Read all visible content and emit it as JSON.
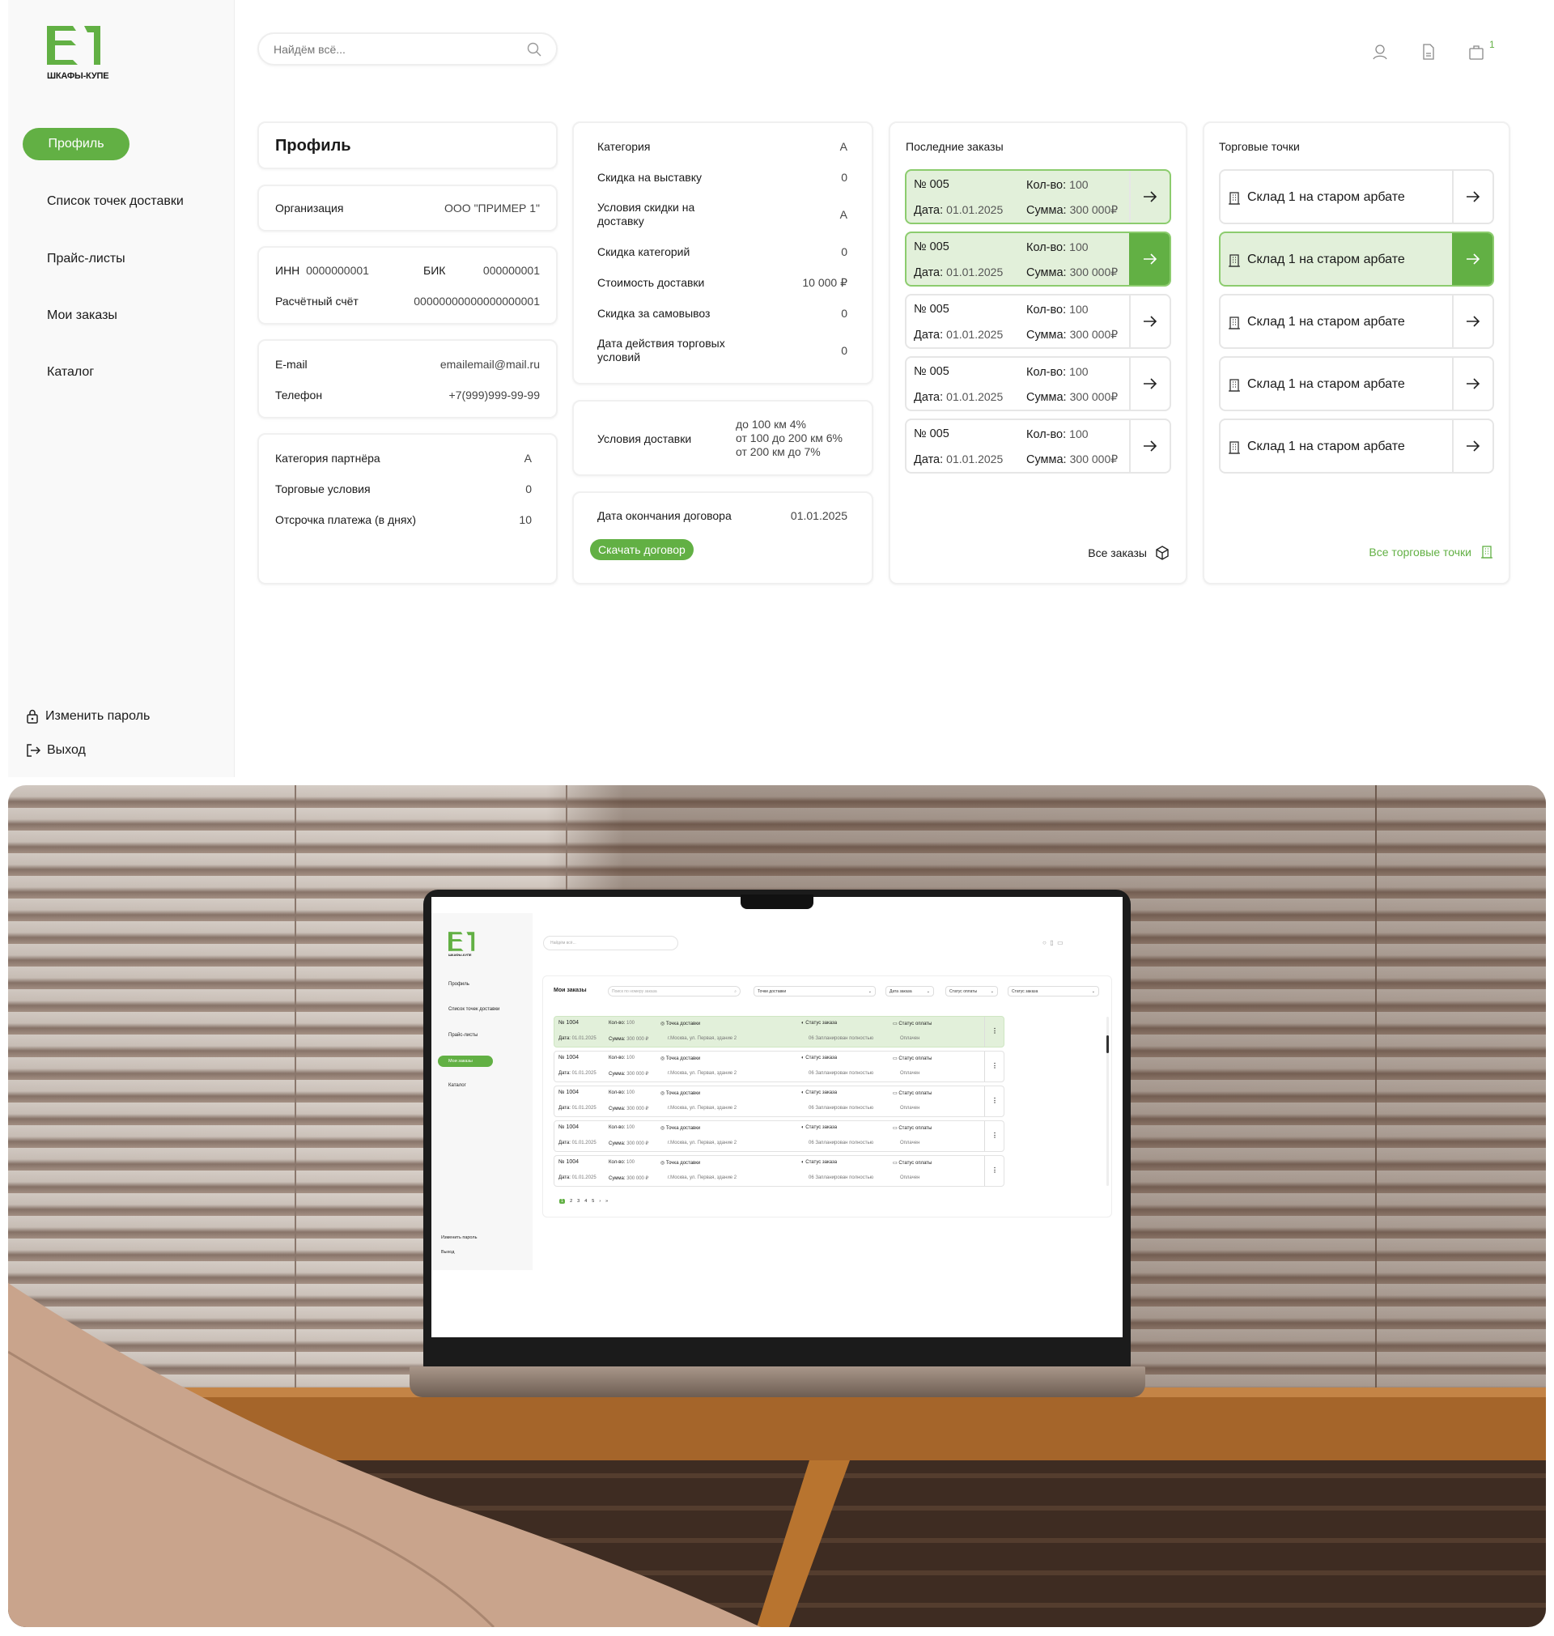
{
  "brand": {
    "logo_text": "ШКАФЫ-КУПЕ",
    "accent": "#62b044",
    "accent_light": "#e2f0da"
  },
  "sidebar": {
    "items": [
      {
        "label": "Профиль",
        "active": true
      },
      {
        "label": "Список точек доставки"
      },
      {
        "label": "Прайс-листы"
      },
      {
        "label": "Мои заказы"
      },
      {
        "label": "Каталог"
      }
    ],
    "change_password": "Изменить пароль",
    "logout": "Выход"
  },
  "header": {
    "search_placeholder": "Найдём всё...",
    "cart_count": "1"
  },
  "profile": {
    "title": "Профиль",
    "organization": {
      "label": "Организация",
      "value": "ООО \"ПРИМЕР 1\""
    },
    "inn": {
      "label": "ИНН",
      "value": "0000000001"
    },
    "bik": {
      "label": "БИК",
      "value": "000000001"
    },
    "account": {
      "label": "Расчётный счёт",
      "value": "00000000000000000001"
    },
    "email": {
      "label": "E-mail",
      "value": "emailemail@mail.ru"
    },
    "phone": {
      "label": "Телефон",
      "value": "+7(999)999-99-99"
    },
    "partner": [
      {
        "label": "Категория партнёра",
        "value": "A"
      },
      {
        "label": "Торговые условия",
        "value": "0"
      },
      {
        "label": "Отсрочка платежа (в днях)",
        "value": "10"
      }
    ]
  },
  "conditions": {
    "rows": [
      {
        "label": "Категория",
        "value": "A"
      },
      {
        "label": "Скидка на выставку",
        "value": "0"
      },
      {
        "label": "Условия скидки на доставку",
        "value": "A"
      },
      {
        "label": "Скидка категорий",
        "value": "0"
      },
      {
        "label": "Стоимость доставки",
        "value": "10 000 ₽"
      },
      {
        "label": "Скидка за самовывоз",
        "value": "0"
      },
      {
        "label": "Дата действия торговых условий",
        "value": "0"
      }
    ],
    "delivery": {
      "label": "Условия доставки",
      "lines": [
        "до 100 км 4%",
        "от 100 до 200 км 6%",
        "от 200 км до 7%"
      ]
    },
    "contract": {
      "label": "Дата окончания договора",
      "value": "01.01.2025",
      "download": "Скачать договор"
    }
  },
  "orders": {
    "title": "Последние заказы",
    "no_prefix": "№",
    "qty_label": "Кол-во:",
    "date_label": "Дата:",
    "sum_label": "Сумма:",
    "all_label": "Все заказы",
    "items": [
      {
        "no": "005",
        "qty": "100",
        "date": "01.01.2025",
        "sum": "300 000₽",
        "state": "selected"
      },
      {
        "no": "005",
        "qty": "100",
        "date": "01.01.2025",
        "sum": "300 000₽",
        "state": "hover"
      },
      {
        "no": "005",
        "qty": "100",
        "date": "01.01.2025",
        "sum": "300 000₽"
      },
      {
        "no": "005",
        "qty": "100",
        "date": "01.01.2025",
        "sum": "300 000₽"
      },
      {
        "no": "005",
        "qty": "100",
        "date": "01.01.2025",
        "sum": "300 000₽"
      }
    ]
  },
  "stores": {
    "title": "Торговые точки",
    "all_label": "Все торговые точки",
    "items": [
      {
        "name": "Склад 1 на старом арбате"
      },
      {
        "name": "Склад 1 на старом арбате",
        "state": "hover"
      },
      {
        "name": "Склад 1 на старом арбате"
      },
      {
        "name": "Склад 1 на старом арбате"
      },
      {
        "name": "Склад 1 на старом арбате"
      }
    ]
  },
  "laptop_screen": {
    "sidebar": [
      "Профиль",
      "Список точек доставки",
      "Прайс-листы",
      "Мои заказы",
      "Каталог"
    ],
    "active": "Мои заказы",
    "change_password": "Изменить пароль",
    "logout": "Выход",
    "search_placeholder": "Найдём всё...",
    "title": "Мои заказы",
    "order_search_placeholder": "Поиск по номеру заказа",
    "filters": [
      "Точки доставки",
      "Дата заказа",
      "Статус оплаты",
      "Статус заказа"
    ],
    "row": {
      "no": "№ 1004",
      "qty_label": "Кол-во:",
      "qty": "100",
      "date_label": "Дата:",
      "date": "01.01.2025",
      "sum_label": "Сумма:",
      "sum": "300 000 ₽",
      "point_label": "Точка доставки",
      "point": "г.Москва, ул. Первая, здание 2",
      "status_label": "Статус заказа",
      "status": "06 Запланирован полностью",
      "pay_label": "Статус оплаты",
      "pay": "Оплачен"
    },
    "pages": [
      "1",
      "2",
      "3",
      "4",
      "5",
      "›",
      "»"
    ]
  }
}
